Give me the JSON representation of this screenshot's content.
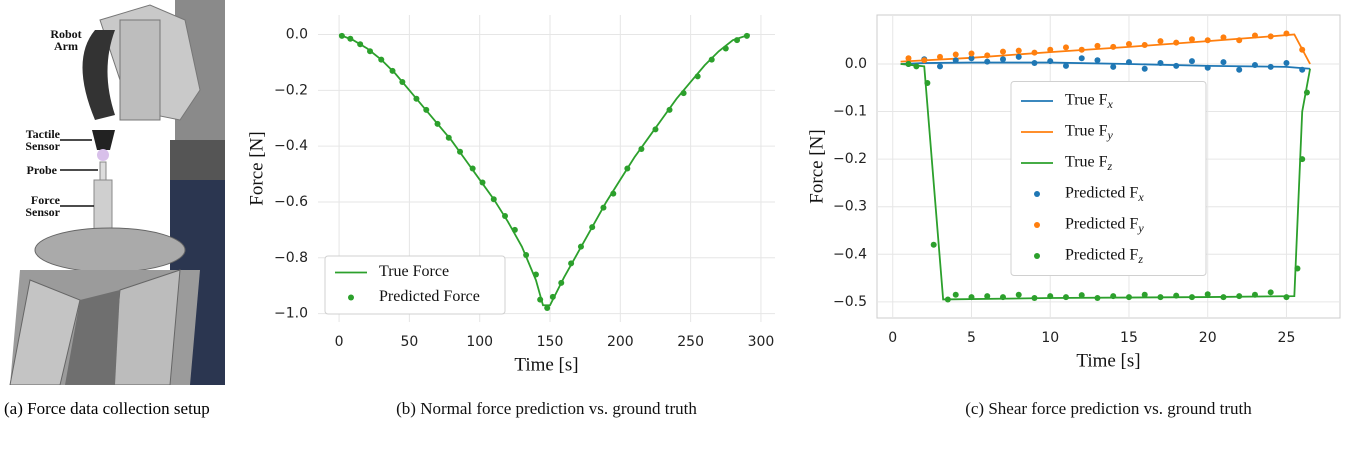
{
  "photo": {
    "labels": [
      "Robot Arm",
      "Tactile Sensor",
      "Probe",
      "Force Sensor"
    ],
    "caption": "(a) Force data collection setup"
  },
  "chart_data": [
    {
      "type": "line",
      "caption": "(b) Normal force prediction vs. ground truth",
      "xlabel": "Time [s]",
      "ylabel": "Force [N]",
      "xlim": [
        -15,
        310
      ],
      "ylim": [
        -1.03,
        0.07
      ],
      "xticks": [
        0,
        50,
        100,
        150,
        200,
        250,
        300
      ],
      "yticks": [
        {
          "value": 0,
          "label": "0.0"
        },
        {
          "value": -0.2,
          "label": "−0.2"
        },
        {
          "value": -0.4,
          "label": "−0.4"
        },
        {
          "value": -0.6,
          "label": "−0.6"
        },
        {
          "value": -0.8,
          "label": "−0.8"
        },
        {
          "value": -1,
          "label": "−1.0"
        }
      ],
      "grid": true,
      "spines": false,
      "legend": "lower left",
      "series": [
        {
          "name": "True Force",
          "color": "#2ca02c",
          "style": "line",
          "x": [
            0,
            10,
            20,
            30,
            40,
            50,
            60,
            70,
            80,
            90,
            100,
            110,
            120,
            130,
            140,
            145,
            150,
            160,
            170,
            180,
            190,
            200,
            210,
            220,
            230,
            240,
            250,
            260,
            270,
            280,
            292
          ],
          "values": [
            0,
            -0.02,
            -0.05,
            -0.09,
            -0.14,
            -0.2,
            -0.26,
            -0.32,
            -0.38,
            -0.45,
            -0.52,
            -0.59,
            -0.67,
            -0.76,
            -0.88,
            -0.97,
            -0.97,
            -0.87,
            -0.78,
            -0.69,
            -0.6,
            -0.52,
            -0.44,
            -0.37,
            -0.3,
            -0.23,
            -0.17,
            -0.11,
            -0.06,
            -0.02,
            0
          ]
        },
        {
          "name": "Predicted Force",
          "color": "#2ca02c",
          "style": "points",
          "x": [
            2,
            8,
            15,
            22,
            30,
            38,
            45,
            55,
            62,
            70,
            78,
            86,
            95,
            102,
            110,
            118,
            125,
            133,
            140,
            143,
            148,
            152,
            158,
            165,
            172,
            180,
            188,
            195,
            205,
            215,
            225,
            235,
            245,
            255,
            265,
            275,
            283,
            290
          ],
          "values": [
            -0.005,
            -0.015,
            -0.035,
            -0.06,
            -0.09,
            -0.13,
            -0.17,
            -0.23,
            -0.27,
            -0.32,
            -0.37,
            -0.42,
            -0.48,
            -0.53,
            -0.59,
            -0.65,
            -0.7,
            -0.79,
            -0.86,
            -0.95,
            -0.98,
            -0.94,
            -0.89,
            -0.82,
            -0.76,
            -0.69,
            -0.62,
            -0.57,
            -0.48,
            -0.41,
            -0.34,
            -0.27,
            -0.21,
            -0.15,
            -0.09,
            -0.05,
            -0.02,
            -0.005
          ]
        }
      ]
    },
    {
      "type": "line",
      "caption": "(c) Shear force prediction vs. ground truth",
      "xlabel": "Time [s]",
      "ylabel": "Force [N]",
      "xlim": [
        -1,
        28.4
      ],
      "ylim": [
        -0.534,
        0.103
      ],
      "xticks": [
        0,
        5,
        10,
        15,
        20,
        25
      ],
      "yticks": [
        {
          "value": 0,
          "label": "0.0"
        },
        {
          "value": -0.1,
          "label": "−0.1"
        },
        {
          "value": -0.2,
          "label": "−0.2"
        },
        {
          "value": -0.3,
          "label": "−0.3"
        },
        {
          "value": -0.4,
          "label": "−0.4"
        },
        {
          "value": -0.5,
          "label": "−0.5"
        }
      ],
      "grid": true,
      "spines": true,
      "legend": "center",
      "series": [
        {
          "name": "True Fx",
          "color": "#1f77b4",
          "style": "line",
          "x": [
            0.5,
            2,
            5,
            10,
            15,
            20,
            25,
            26.5
          ],
          "values": [
            0,
            0.002,
            0.003,
            0.003,
            0,
            -0.004,
            -0.006,
            -0.01
          ]
        },
        {
          "name": "True Fy",
          "color": "#ff7f0e",
          "style": "line",
          "x": [
            0.5,
            5,
            10,
            15,
            20,
            24,
            25.5,
            26.5
          ],
          "values": [
            0.005,
            0.013,
            0.025,
            0.036,
            0.048,
            0.058,
            0.062,
            0
          ]
        },
        {
          "name": "True Fz",
          "color": "#2ca02c",
          "style": "line",
          "x": [
            0.5,
            2,
            3.2,
            10,
            20,
            25.5,
            26,
            26.5
          ],
          "values": [
            0,
            -0.005,
            -0.495,
            -0.492,
            -0.49,
            -0.488,
            -0.1,
            -0.01
          ]
        },
        {
          "name": "Predicted Fx",
          "color": "#1f77b4",
          "style": "points",
          "x": [
            1,
            2,
            3,
            4,
            5,
            6,
            7,
            8,
            9,
            10,
            11,
            12,
            13,
            14,
            15,
            16,
            17,
            18,
            19,
            20,
            21,
            22,
            23,
            24,
            25,
            26
          ],
          "values": [
            0,
            0.01,
            -0.005,
            0.008,
            0.012,
            0.005,
            0.01,
            0.015,
            0.002,
            0.006,
            -0.004,
            0.012,
            0.008,
            -0.006,
            0.004,
            -0.01,
            0.002,
            -0.004,
            0.006,
            -0.008,
            0.004,
            -0.012,
            -0.002,
            -0.006,
            0.002,
            -0.012
          ]
        },
        {
          "name": "Predicted Fy",
          "color": "#ff7f0e",
          "style": "points",
          "x": [
            1,
            2,
            3,
            4,
            5,
            6,
            7,
            8,
            9,
            10,
            11,
            12,
            13,
            14,
            15,
            16,
            17,
            18,
            19,
            20,
            21,
            22,
            23,
            24,
            25,
            26
          ],
          "values": [
            0.012,
            0.008,
            0.015,
            0.02,
            0.022,
            0.018,
            0.026,
            0.028,
            0.024,
            0.03,
            0.035,
            0.03,
            0.038,
            0.036,
            0.042,
            0.04,
            0.048,
            0.045,
            0.052,
            0.05,
            0.056,
            0.05,
            0.06,
            0.058,
            0.064,
            0.03
          ]
        },
        {
          "name": "Predicted Fz",
          "color": "#2ca02c",
          "style": "points",
          "x": [
            1,
            1.5,
            2.2,
            2.6,
            3.5,
            4,
            5,
            6,
            7,
            8,
            9,
            10,
            11,
            12,
            13,
            14,
            15,
            16,
            17,
            18,
            19,
            20,
            21,
            22,
            23,
            24,
            25,
            25.7,
            26,
            26.3
          ],
          "values": [
            0,
            -0.005,
            -0.04,
            -0.38,
            -0.495,
            -0.485,
            -0.49,
            -0.488,
            -0.49,
            -0.485,
            -0.492,
            -0.488,
            -0.49,
            -0.486,
            -0.492,
            -0.488,
            -0.49,
            -0.485,
            -0.49,
            -0.487,
            -0.49,
            -0.484,
            -0.49,
            -0.488,
            -0.485,
            -0.48,
            -0.49,
            -0.43,
            -0.2,
            -0.06
          ]
        }
      ]
    }
  ]
}
